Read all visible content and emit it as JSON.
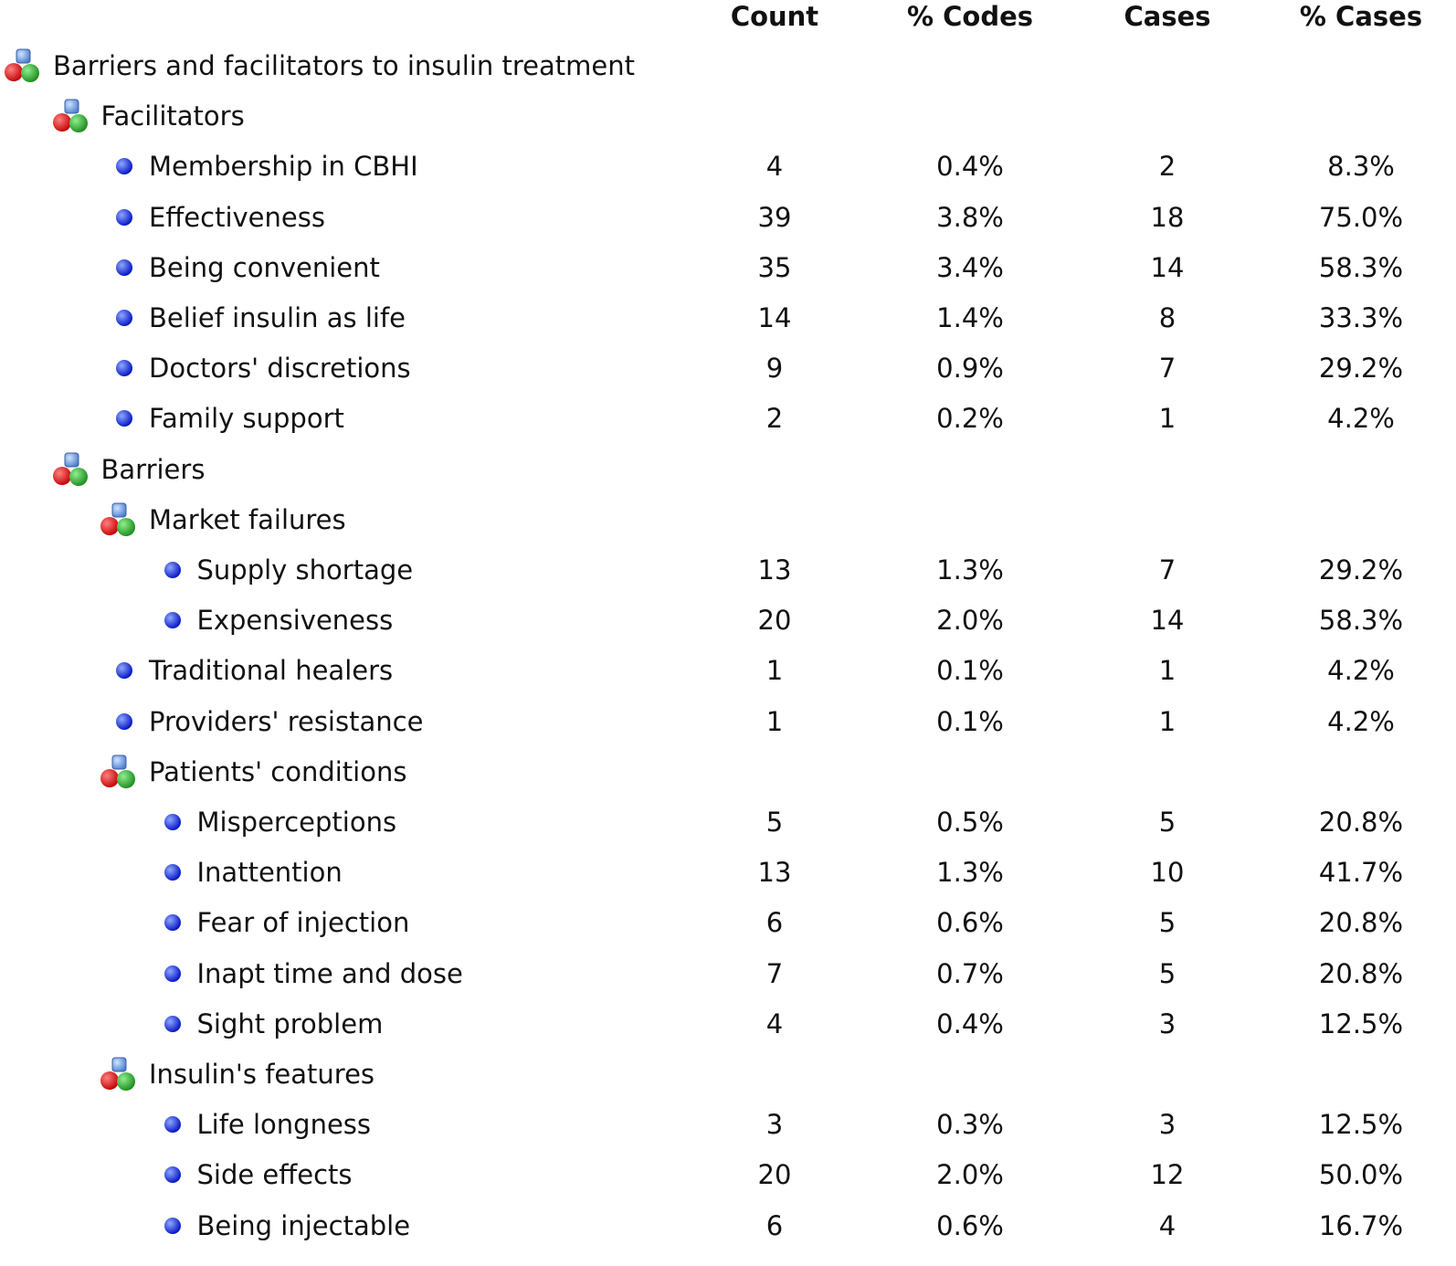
{
  "columns": [
    "Count",
    "% Codes",
    "Cases",
    "% Cases"
  ],
  "tree": {
    "label": "Barriers and facilitators to insulin treatment",
    "children": [
      {
        "label": "Facilitators",
        "children": [
          {
            "label": "Membership in CBHI",
            "values": [
              "4",
              "0.4%",
              "2",
              "8.3%"
            ]
          },
          {
            "label": "Effectiveness",
            "values": [
              "39",
              "3.8%",
              "18",
              "75.0%"
            ]
          },
          {
            "label": "Being convenient",
            "values": [
              "35",
              "3.4%",
              "14",
              "58.3%"
            ]
          },
          {
            "label": "Belief insulin as life",
            "values": [
              "14",
              "1.4%",
              "8",
              "33.3%"
            ]
          },
          {
            "label": "Doctors' discretions",
            "values": [
              "9",
              "0.9%",
              "7",
              "29.2%"
            ]
          },
          {
            "label": "Family support",
            "values": [
              "2",
              "0.2%",
              "1",
              "4.2%"
            ]
          }
        ]
      },
      {
        "label": "Barriers",
        "children": [
          {
            "label": "Market failures",
            "children": [
              {
                "label": "Supply shortage",
                "values": [
                  "13",
                  "1.3%",
                  "7",
                  "29.2%"
                ]
              },
              {
                "label": "Expensiveness",
                "values": [
                  "20",
                  "2.0%",
                  "14",
                  "58.3%"
                ]
              }
            ]
          },
          {
            "label": "Traditional healers",
            "values": [
              "1",
              "0.1%",
              "1",
              "4.2%"
            ]
          },
          {
            "label": "Providers' resistance",
            "values": [
              "1",
              "0.1%",
              "1",
              "4.2%"
            ]
          },
          {
            "label": "Patients' conditions",
            "children": [
              {
                "label": "Misperceptions",
                "values": [
                  "5",
                  "0.5%",
                  "5",
                  "20.8%"
                ]
              },
              {
                "label": "Inattention",
                "values": [
                  "13",
                  "1.3%",
                  "10",
                  "41.7%"
                ]
              },
              {
                "label": "Fear of injection",
                "values": [
                  "6",
                  "0.6%",
                  "5",
                  "20.8%"
                ]
              },
              {
                "label": "Inapt time and dose",
                "values": [
                  "7",
                  "0.7%",
                  "5",
                  "20.8%"
                ]
              },
              {
                "label": "Sight problem",
                "values": [
                  "4",
                  "0.4%",
                  "3",
                  "12.5%"
                ]
              }
            ]
          },
          {
            "label": "Insulin's features",
            "children": [
              {
                "label": "Life longness",
                "values": [
                  "3",
                  "0.3%",
                  "3",
                  "12.5%"
                ]
              },
              {
                "label": "Side effects",
                "values": [
                  "20",
                  "2.0%",
                  "12",
                  "50.0%"
                ]
              },
              {
                "label": "Being injectable",
                "values": [
                  "6",
                  "0.6%",
                  "4",
                  "16.7%"
                ]
              }
            ]
          }
        ]
      }
    ]
  }
}
